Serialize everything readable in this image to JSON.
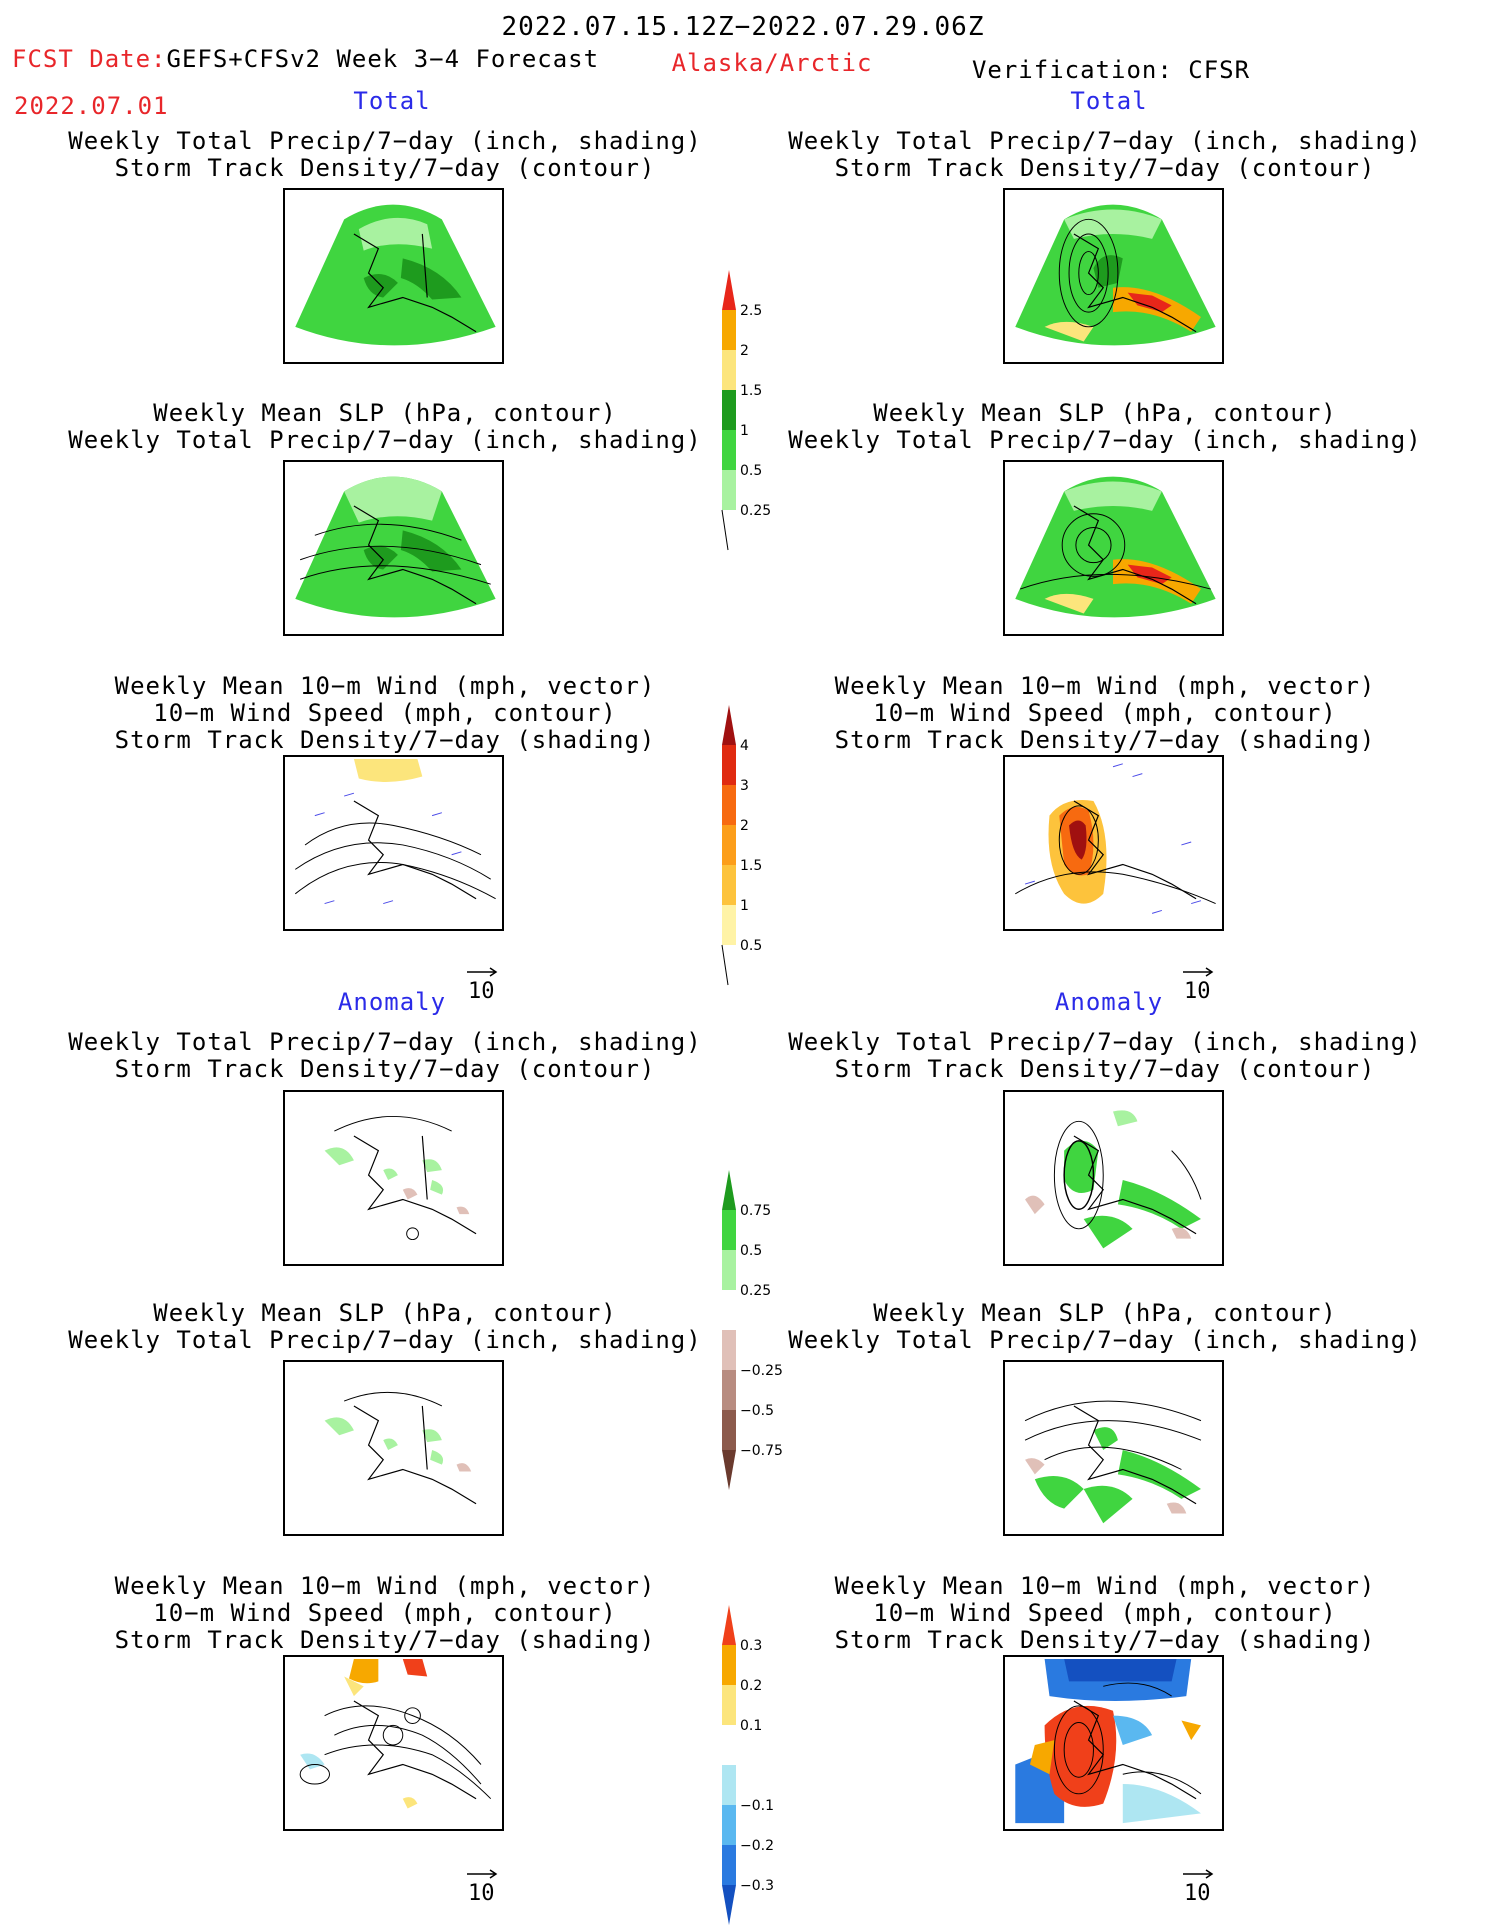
{
  "header": {
    "period": "2022.07.15.12Z−2022.07.29.06Z",
    "fcst_label": "FCST Date:",
    "fcst_model": "GEFS+CFSv2 Week 3−4 Forecast",
    "fcst_date": "2022.07.01",
    "region": "Alaska/Arctic",
    "verification": "Verification: CFSR"
  },
  "sections": {
    "total": "Total",
    "anomaly": "Anomaly"
  },
  "titles": {
    "precip_track": [
      "Weekly Total Precip/7−day (inch, shading)",
      "Storm Track Density/7−day (contour)"
    ],
    "slp_precip": [
      "Weekly Mean SLP (hPa, contour)",
      "Weekly Total Precip/7−day (inch, shading)"
    ],
    "wind_track": [
      "Weekly Mean 10−m Wind (mph, vector)",
      "10−m Wind Speed (mph, contour)",
      "Storm Track Density/7−day (shading)"
    ]
  },
  "vector_ref": "10",
  "colorbars": {
    "total_precip": {
      "labels": [
        "2.5",
        "2",
        "1.5",
        "1",
        "0.5",
        "0.25"
      ],
      "colors": [
        "#e8261a",
        "#f7a800",
        "#fce57c",
        "#1e9b1e",
        "#40d540",
        "#a8f2a0"
      ]
    },
    "total_track": {
      "labels": [
        "4",
        "3",
        "2",
        "1.5",
        "1",
        "0.5"
      ],
      "colors": [
        "#a01010",
        "#e02a10",
        "#f76a10",
        "#fc9e1a",
        "#fdc33c",
        "#fff3a6"
      ]
    },
    "anom_precip": {
      "labels": [
        "0.75",
        "0.5",
        "0.25",
        "−0.25",
        "−0.5",
        "−0.75"
      ],
      "colors": [
        "#1e9b1e",
        "#40d540",
        "#a8f2a0",
        "#ffffff",
        "#e0c0b8",
        "#b88c80",
        "#8c5a4c",
        "#6a3a2e"
      ]
    },
    "anom_track": {
      "labels": [
        "0.3",
        "0.2",
        "0.1",
        "−0.1",
        "−0.2",
        "−0.3"
      ],
      "colors": [
        "#f0401a",
        "#f7a800",
        "#fce57c",
        "#ffffff",
        "#aee6f2",
        "#5ab8f0",
        "#2a7ae0",
        "#1450c0"
      ]
    }
  }
}
